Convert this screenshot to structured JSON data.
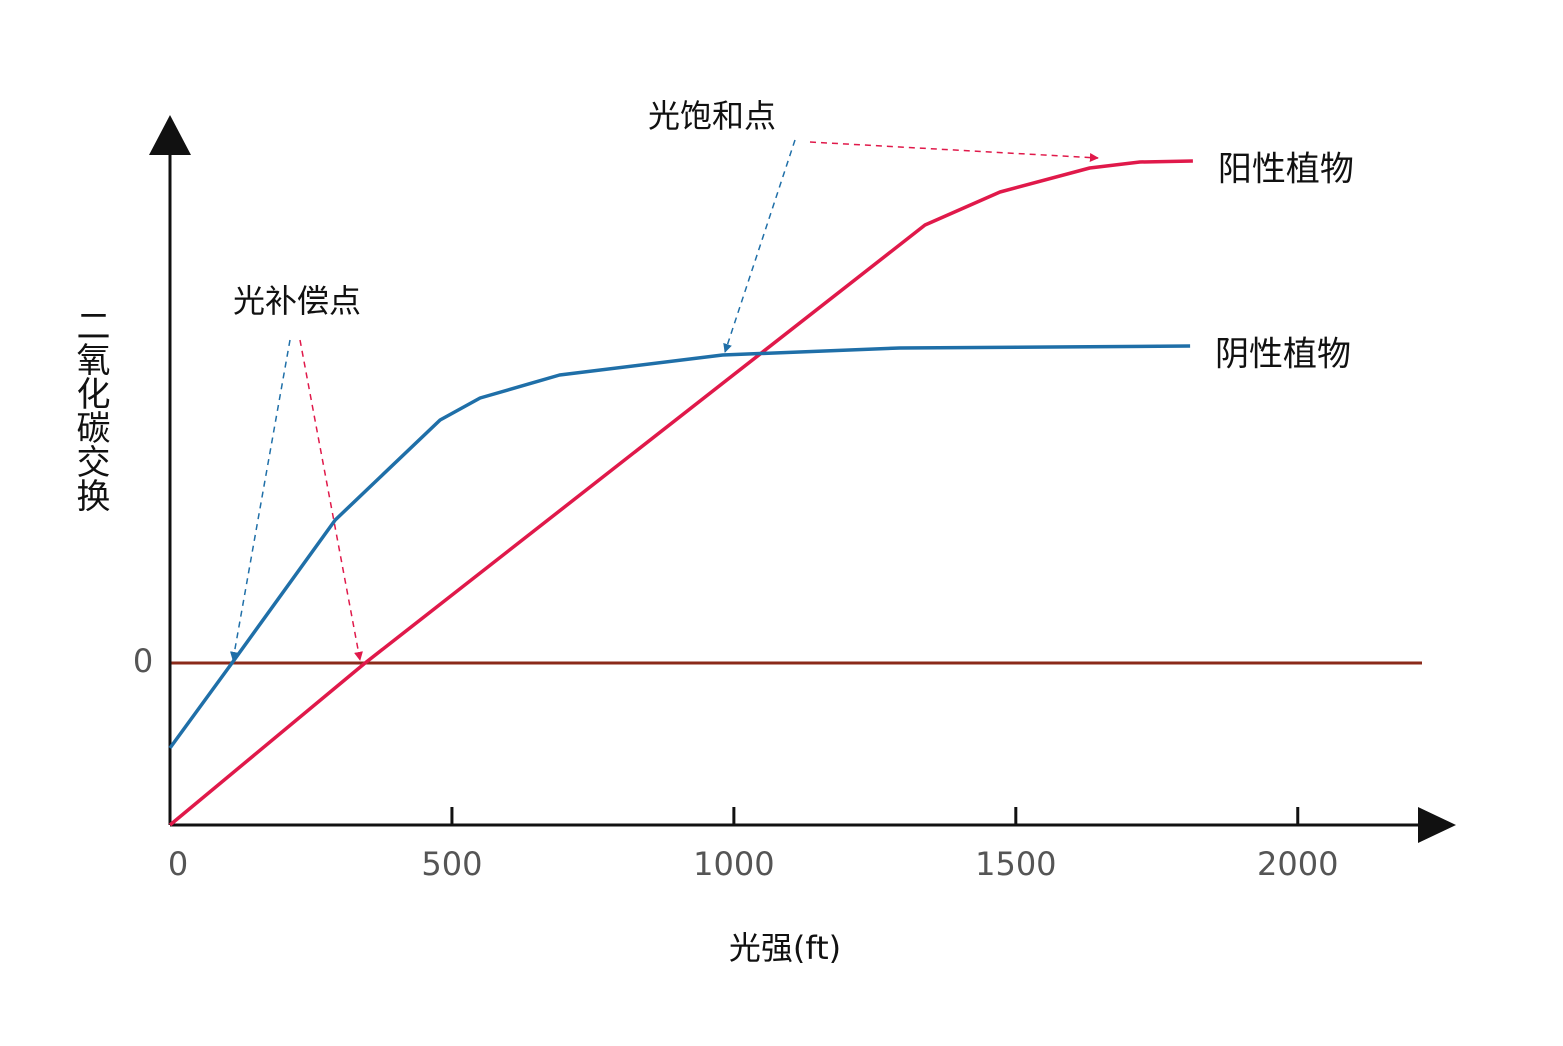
{
  "chart_data": {
    "type": "line",
    "x_label": "光强(ft)",
    "y_label": "二氧化碳交换",
    "xlim": [
      0,
      2270
    ],
    "xticks": [
      0,
      500,
      1000,
      1500,
      2000
    ],
    "ylim": [
      -16.2,
      53.3
    ],
    "yticks": [
      0
    ],
    "series": [
      {
        "name": "阳性植物",
        "color": "#e0194a",
        "x": [
          0,
          346,
          1339,
          1472,
          1631,
          1720,
          1814
        ],
        "values": [
          -16.2,
          0,
          43.8,
          47.1,
          49.5,
          50.1,
          50.2
        ]
      },
      {
        "name": "阴性植物",
        "color": "#1f6fa8",
        "x": [
          0,
          110,
          293,
          479,
          550,
          691,
          980,
          1294,
          1809
        ],
        "values": [
          -8.5,
          0,
          14.3,
          24.3,
          26.5,
          28.8,
          30.8,
          31.5,
          31.7
        ]
      }
    ],
    "annotations": [
      "光补偿点",
      "光饱和点"
    ]
  }
}
